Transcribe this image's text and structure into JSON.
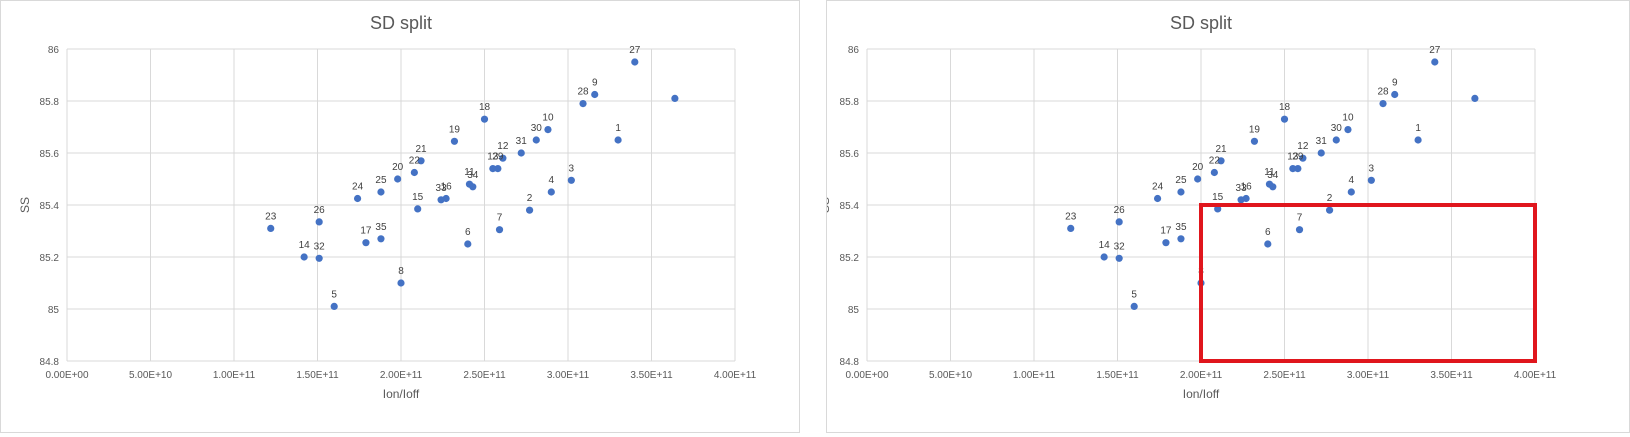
{
  "charts": [
    {
      "panel": "left",
      "chart_data": {
        "type": "scatter",
        "title": "SD split",
        "xlabel": "Ion/Ioff",
        "ylabel": "SS",
        "xlim": [
          0,
          400000000000
        ],
        "ylim": [
          84.8,
          86
        ],
        "x_ticks": [
          "0.00E+00",
          "5.00E+10",
          "1.00E+11",
          "1.50E+11",
          "2.00E+11",
          "2.50E+11",
          "3.00E+11",
          "3.50E+11",
          "4.00E+11"
        ],
        "y_ticks": [
          "84.8",
          "85",
          "85.2",
          "85.4",
          "85.6",
          "85.8",
          "86"
        ],
        "grid": true,
        "legend": "none",
        "points": [
          {
            "label": "1",
            "x": 330000000000,
            "y": 85.65
          },
          {
            "label": "2",
            "x": 277000000000,
            "y": 85.38
          },
          {
            "label": "3",
            "x": 302000000000,
            "y": 85.495
          },
          {
            "label": "4",
            "x": 290000000000,
            "y": 85.45
          },
          {
            "label": "5",
            "x": 160000000000,
            "y": 85.01
          },
          {
            "label": "6",
            "x": 240000000000,
            "y": 85.25
          },
          {
            "label": "7",
            "x": 259000000000,
            "y": 85.305
          },
          {
            "label": "8",
            "x": 200000000000,
            "y": 85.1
          },
          {
            "label": "9",
            "x": 316000000000,
            "y": 85.825
          },
          {
            "label": "10",
            "x": 288000000000,
            "y": 85.69
          },
          {
            "label": "11",
            "x": 241000000000,
            "y": 85.48
          },
          {
            "label": "12",
            "x": 261000000000,
            "y": 85.58
          },
          {
            "label": "13",
            "x": 255000000000,
            "y": 85.54
          },
          {
            "label": "14",
            "x": 142000000000,
            "y": 85.2
          },
          {
            "label": "15",
            "x": 210000000000,
            "y": 85.385
          },
          {
            "label": "16",
            "x": 227000000000,
            "y": 85.425
          },
          {
            "label": "17",
            "x": 179000000000,
            "y": 85.255
          },
          {
            "label": "18",
            "x": 250000000000,
            "y": 85.73
          },
          {
            "label": "19",
            "x": 232000000000,
            "y": 85.645
          },
          {
            "label": "20",
            "x": 198000000000,
            "y": 85.5
          },
          {
            "label": "21",
            "x": 212000000000,
            "y": 85.57
          },
          {
            "label": "22",
            "x": 208000000000,
            "y": 85.525
          },
          {
            "label": "23",
            "x": 122000000000,
            "y": 85.31
          },
          {
            "label": "24",
            "x": 174000000000,
            "y": 85.425
          },
          {
            "label": "25",
            "x": 188000000000,
            "y": 85.45
          },
          {
            "label": "26",
            "x": 151000000000,
            "y": 85.335
          },
          {
            "label": "27",
            "x": 340000000000,
            "y": 85.95
          },
          {
            "label": "28",
            "x": 309000000000,
            "y": 85.79
          },
          {
            "label": "29",
            "x": 258000000000,
            "y": 85.54
          },
          {
            "label": "30",
            "x": 281000000000,
            "y": 85.65
          },
          {
            "label": "31",
            "x": 272000000000,
            "y": 85.6
          },
          {
            "label": "32",
            "x": 151000000000,
            "y": 85.195
          },
          {
            "label": "33",
            "x": 224000000000,
            "y": 85.42
          },
          {
            "label": "34",
            "x": 243000000000,
            "y": 85.47
          },
          {
            "label": "35",
            "x": 188000000000,
            "y": 85.27
          },
          {
            "label": "",
            "x": 364000000000,
            "y": 85.81
          }
        ]
      }
    },
    {
      "panel": "right",
      "chart_data": {
        "type": "scatter",
        "title": "SD split",
        "xlabel": "Ion/Ioff",
        "ylabel": "SS",
        "xlim": [
          0,
          400000000000
        ],
        "ylim": [
          84.8,
          86
        ],
        "x_ticks": [
          "0.00E+00",
          "5.00E+10",
          "1.00E+11",
          "1.50E+11",
          "2.00E+11",
          "2.50E+11",
          "3.00E+11",
          "3.50E+11",
          "4.00E+11"
        ],
        "y_ticks": [
          "84.8",
          "85",
          "85.2",
          "85.4",
          "85.6",
          "85.8",
          "86"
        ],
        "grid": true,
        "legend": "none",
        "highlight_region": {
          "x_range": [
            200000000000,
            400000000000
          ],
          "y_range": [
            84.8,
            85.4
          ],
          "color": "#e0161d"
        },
        "points": [
          {
            "label": "1",
            "x": 330000000000,
            "y": 85.65
          },
          {
            "label": "2",
            "x": 277000000000,
            "y": 85.38
          },
          {
            "label": "3",
            "x": 302000000000,
            "y": 85.495
          },
          {
            "label": "4",
            "x": 290000000000,
            "y": 85.45
          },
          {
            "label": "5",
            "x": 160000000000,
            "y": 85.01
          },
          {
            "label": "6",
            "x": 240000000000,
            "y": 85.25
          },
          {
            "label": "7",
            "x": 259000000000,
            "y": 85.305
          },
          {
            "label": "8",
            "x": 200000000000,
            "y": 85.1
          },
          {
            "label": "9",
            "x": 316000000000,
            "y": 85.825
          },
          {
            "label": "10",
            "x": 288000000000,
            "y": 85.69
          },
          {
            "label": "11",
            "x": 241000000000,
            "y": 85.48
          },
          {
            "label": "12",
            "x": 261000000000,
            "y": 85.58
          },
          {
            "label": "13",
            "x": 255000000000,
            "y": 85.54
          },
          {
            "label": "14",
            "x": 142000000000,
            "y": 85.2
          },
          {
            "label": "15",
            "x": 210000000000,
            "y": 85.385
          },
          {
            "label": "16",
            "x": 227000000000,
            "y": 85.425
          },
          {
            "label": "17",
            "x": 179000000000,
            "y": 85.255
          },
          {
            "label": "18",
            "x": 250000000000,
            "y": 85.73
          },
          {
            "label": "19",
            "x": 232000000000,
            "y": 85.645
          },
          {
            "label": "20",
            "x": 198000000000,
            "y": 85.5
          },
          {
            "label": "21",
            "x": 212000000000,
            "y": 85.57
          },
          {
            "label": "22",
            "x": 208000000000,
            "y": 85.525
          },
          {
            "label": "23",
            "x": 122000000000,
            "y": 85.31
          },
          {
            "label": "24",
            "x": 174000000000,
            "y": 85.425
          },
          {
            "label": "25",
            "x": 188000000000,
            "y": 85.45
          },
          {
            "label": "26",
            "x": 151000000000,
            "y": 85.335
          },
          {
            "label": "27",
            "x": 340000000000,
            "y": 85.95
          },
          {
            "label": "28",
            "x": 309000000000,
            "y": 85.79
          },
          {
            "label": "29",
            "x": 258000000000,
            "y": 85.54
          },
          {
            "label": "30",
            "x": 281000000000,
            "y": 85.65
          },
          {
            "label": "31",
            "x": 272000000000,
            "y": 85.6
          },
          {
            "label": "32",
            "x": 151000000000,
            "y": 85.195
          },
          {
            "label": "33",
            "x": 224000000000,
            "y": 85.42
          },
          {
            "label": "34",
            "x": 243000000000,
            "y": 85.47
          },
          {
            "label": "35",
            "x": 188000000000,
            "y": 85.27
          },
          {
            "label": "",
            "x": 364000000000,
            "y": 85.81
          }
        ]
      }
    }
  ]
}
